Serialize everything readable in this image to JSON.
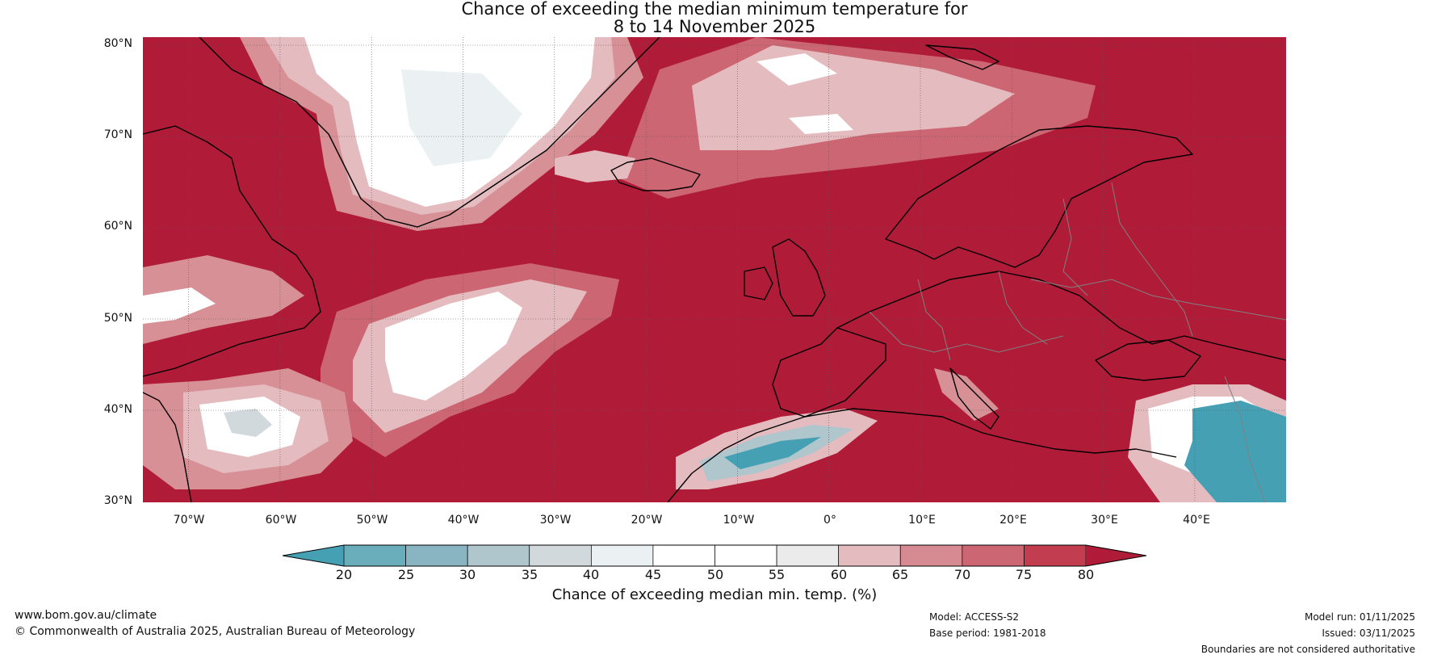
{
  "title": {
    "line1": "Chance of exceeding the median minimum temperature for",
    "line2": "8 to 14 November 2025"
  },
  "map": {
    "lat_labels": [
      "80°N",
      "70°N",
      "60°N",
      "50°N",
      "40°N",
      "30°N"
    ],
    "lon_labels": [
      "70°W",
      "60°W",
      "50°W",
      "40°W",
      "30°W",
      "20°W",
      "10°W",
      "0°",
      "10°E",
      "20°E",
      "30°E",
      "40°E"
    ],
    "colors": {
      "high": "#b01c38",
      "c75": "#c33d50",
      "c70": "#cc6672",
      "c65": "#d69096",
      "c60": "#e4bbbe",
      "neutral": "#ffffff",
      "c45": "#ebf1f3",
      "c40": "#d1d9dc",
      "c35": "#aec6cc",
      "c30": "#88b5c1",
      "low": "#46a0b4",
      "coast": "#000000",
      "border": "#808080"
    }
  },
  "colorbar": {
    "ticks": [
      "20",
      "25",
      "30",
      "35",
      "40",
      "45",
      "50",
      "55",
      "60",
      "65",
      "70",
      "75",
      "80"
    ],
    "colors": [
      "#6aaebc",
      "#88b5c1",
      "#aec6cc",
      "#d1d9dc",
      "#ebf1f3",
      "#ffffff",
      "#ffffff",
      "#ebebeb",
      "#e4bbbe",
      "#d68b93",
      "#cc6672",
      "#c33d50"
    ],
    "low_color": "#46a0b4",
    "high_color": "#b01c38",
    "label": "Chance of exceeding median min. temp. (%)"
  },
  "footer": {
    "website": "www.bom.gov.au/climate",
    "copyright": "© Commonwealth of Australia 2025, Australian Bureau of Meteorology",
    "model": "Model: ACCESS-S2",
    "base_period": "Base period: 1981-2018",
    "model_run": "Model run: 01/11/2025",
    "issued": "Issued: 03/11/2025",
    "disclaimer": "Boundaries are not considered authoritative"
  }
}
